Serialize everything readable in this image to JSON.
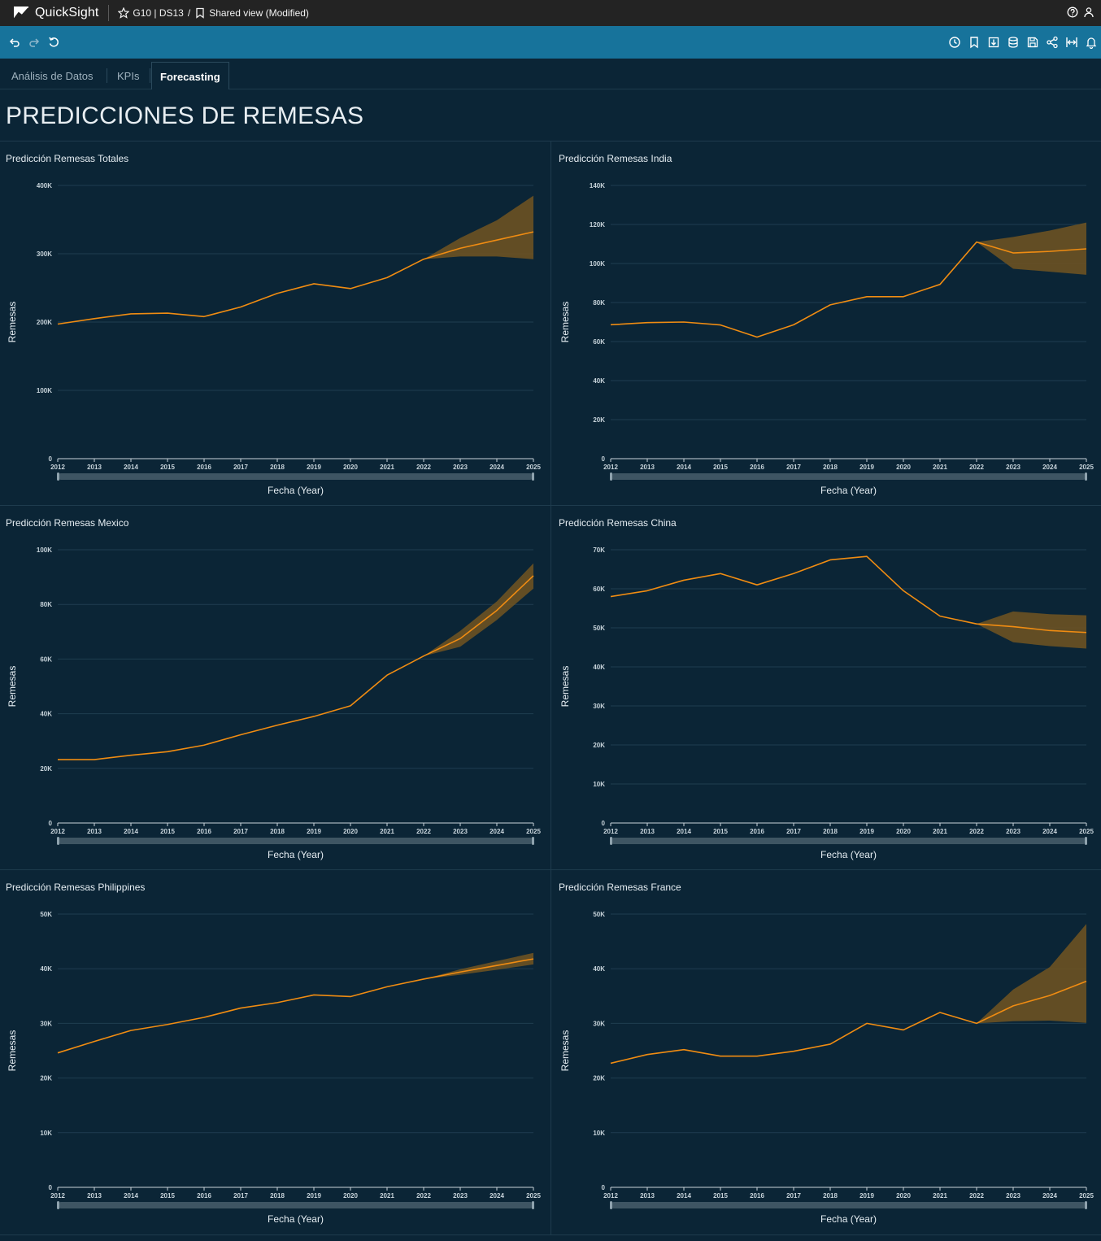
{
  "app": {
    "name": "QuickSight",
    "breadcrumb": {
      "analysis": "G10 | DS13",
      "separator": "/",
      "view": "Shared view (Modified)"
    }
  },
  "tabs": [
    {
      "label": "Análisis de Datos",
      "active": false
    },
    {
      "label": "KPIs",
      "active": false
    },
    {
      "label": "Forecasting",
      "active": true
    }
  ],
  "page": {
    "title": "PREDICCIONES DE REMESAS"
  },
  "colors": {
    "line": "#f08c12",
    "band": "#6b5222",
    "grid": "#1f3d50",
    "axis": "#c8d4db"
  },
  "icons": {
    "top": [
      "help-icon",
      "user-icon"
    ],
    "toolbar_left": [
      "undo-icon",
      "redo-icon",
      "reset-icon"
    ],
    "toolbar_right": [
      "schedule-icon",
      "bookmark-icon",
      "download-icon",
      "dataset-icon",
      "save-icon",
      "share-icon",
      "fit-width-icon",
      "alert-icon"
    ]
  },
  "chart_data": [
    {
      "type": "line",
      "title": "Predicción Remesas Totales",
      "xlabel": "Fecha (Year)",
      "ylabel": "Remesas",
      "x": [
        "2012",
        "2013",
        "2014",
        "2015",
        "2016",
        "2017",
        "2018",
        "2019",
        "2020",
        "2021",
        "2022",
        "2023",
        "2024",
        "2025"
      ],
      "ylim": [
        0,
        400000
      ],
      "yticks": [
        0,
        100000,
        200000,
        300000,
        400000
      ],
      "ytick_labels": [
        "0",
        "100K",
        "200K",
        "300K",
        "400K"
      ],
      "series": [
        {
          "values": [
            197000,
            205000,
            212000,
            213000,
            208000,
            222000,
            242000,
            256000,
            249000,
            265000,
            292000,
            308000,
            320000,
            332000
          ]
        }
      ],
      "forecast_band": {
        "start_index": 10,
        "upper": [
          292000,
          323000,
          349000,
          385000
        ],
        "lower": [
          292000,
          296000,
          296000,
          292000
        ]
      },
      "grid": true
    },
    {
      "type": "line",
      "title": "Predicción Remesas India",
      "xlabel": "Fecha (Year)",
      "ylabel": "Remesas",
      "x": [
        "2012",
        "2013",
        "2014",
        "2015",
        "2016",
        "2017",
        "2018",
        "2019",
        "2020",
        "2021",
        "2022",
        "2023",
        "2024",
        "2025"
      ],
      "ylim": [
        0,
        140000
      ],
      "yticks": [
        0,
        20000,
        40000,
        60000,
        80000,
        100000,
        120000,
        140000
      ],
      "ytick_labels": [
        "0",
        "20K",
        "40K",
        "60K",
        "80K",
        "100K",
        "120K",
        "140K"
      ],
      "series": [
        {
          "values": [
            68600,
            69700,
            70000,
            68500,
            62300,
            68600,
            78800,
            83000,
            83000,
            89300,
            111000,
            105400,
            106200,
            107500
          ]
        }
      ],
      "forecast_band": {
        "start_index": 10,
        "upper": [
          111000,
          113600,
          116900,
          121000
        ],
        "lower": [
          111000,
          97300,
          95800,
          94200
        ]
      },
      "grid": true
    },
    {
      "type": "line",
      "title": "Predicción Remesas Mexico",
      "xlabel": "Fecha (Year)",
      "ylabel": "Remesas",
      "x": [
        "2012",
        "2013",
        "2014",
        "2015",
        "2016",
        "2017",
        "2018",
        "2019",
        "2020",
        "2021",
        "2022",
        "2023",
        "2024",
        "2025"
      ],
      "ylim": [
        0,
        100000
      ],
      "yticks": [
        0,
        20000,
        40000,
        60000,
        80000,
        100000
      ],
      "ytick_labels": [
        "0",
        "20K",
        "40K",
        "60K",
        "80K",
        "100K"
      ],
      "series": [
        {
          "values": [
            23200,
            23200,
            24800,
            26100,
            28500,
            32300,
            35800,
            39000,
            42900,
            54100,
            61100,
            67500,
            77800,
            90500
          ]
        }
      ],
      "forecast_band": {
        "start_index": 10,
        "upper": [
          61100,
          70300,
          81100,
          95000
        ],
        "lower": [
          61100,
          64500,
          74300,
          85800
        ]
      },
      "grid": true
    },
    {
      "type": "line",
      "title": "Predicción Remesas China",
      "xlabel": "Fecha (Year)",
      "ylabel": "Remesas",
      "x": [
        "2012",
        "2013",
        "2014",
        "2015",
        "2016",
        "2017",
        "2018",
        "2019",
        "2020",
        "2021",
        "2022",
        "2023",
        "2024",
        "2025"
      ],
      "ylim": [
        0,
        70000
      ],
      "yticks": [
        0,
        10000,
        20000,
        30000,
        40000,
        50000,
        60000,
        70000
      ],
      "ytick_labels": [
        "0",
        "10K",
        "20K",
        "30K",
        "40K",
        "50K",
        "60K",
        "70K"
      ],
      "series": [
        {
          "values": [
            58000,
            59500,
            62200,
            63900,
            61000,
            63900,
            67400,
            68300,
            59500,
            53000,
            51000,
            50300,
            49300,
            48800
          ]
        }
      ],
      "forecast_band": {
        "start_index": 10,
        "upper": [
          51000,
          54200,
          53500,
          53200
        ],
        "lower": [
          51000,
          46300,
          45300,
          44700
        ]
      },
      "grid": true
    },
    {
      "type": "line",
      "title": "Predicción Remesas Philippines",
      "xlabel": "Fecha (Year)",
      "ylabel": "Remesas",
      "x": [
        "2012",
        "2013",
        "2014",
        "2015",
        "2016",
        "2017",
        "2018",
        "2019",
        "2020",
        "2021",
        "2022",
        "2023",
        "2024",
        "2025"
      ],
      "ylim": [
        0,
        50000
      ],
      "yticks": [
        0,
        10000,
        20000,
        30000,
        40000,
        50000
      ],
      "ytick_labels": [
        "0",
        "10K",
        "20K",
        "30K",
        "40K",
        "50K"
      ],
      "series": [
        {
          "values": [
            24600,
            26700,
            28700,
            29800,
            31100,
            32800,
            33800,
            35200,
            34900,
            36700,
            38100,
            39400,
            40600,
            41800
          ]
        }
      ],
      "forecast_band": {
        "start_index": 10,
        "upper": [
          38100,
          39900,
          41400,
          42900
        ],
        "lower": [
          38100,
          38900,
          39800,
          40800
        ]
      },
      "grid": true
    },
    {
      "type": "line",
      "title": "Predicción Remesas France",
      "xlabel": "Fecha (Year)",
      "ylabel": "Remesas",
      "x": [
        "2012",
        "2013",
        "2014",
        "2015",
        "2016",
        "2017",
        "2018",
        "2019",
        "2020",
        "2021",
        "2022",
        "2023",
        "2024",
        "2025"
      ],
      "ylim": [
        0,
        50000
      ],
      "yticks": [
        0,
        10000,
        20000,
        30000,
        40000,
        50000
      ],
      "ytick_labels": [
        "0",
        "10K",
        "20K",
        "30K",
        "40K",
        "50K"
      ],
      "series": [
        {
          "values": [
            22700,
            24300,
            25200,
            24000,
            24000,
            24900,
            26200,
            30000,
            28800,
            32000,
            30000,
            33200,
            35100,
            37700
          ]
        }
      ],
      "forecast_band": {
        "start_index": 10,
        "upper": [
          30000,
          36200,
          40300,
          48200
        ],
        "lower": [
          30000,
          30400,
          30500,
          30100
        ]
      },
      "grid": true
    }
  ]
}
